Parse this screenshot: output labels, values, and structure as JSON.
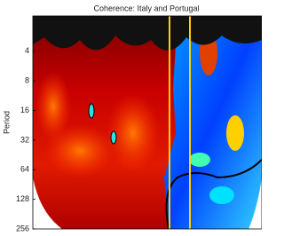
{
  "chart_data": {
    "type": "heatmap",
    "title": "Coherence: Italy and Portugal",
    "ylabel": "Period",
    "ylim": [
      1.75,
      256
    ],
    "yticks": [
      4,
      8,
      16,
      32,
      64,
      128,
      256
    ],
    "log_scale": true,
    "y_reversed": true
  }
}
